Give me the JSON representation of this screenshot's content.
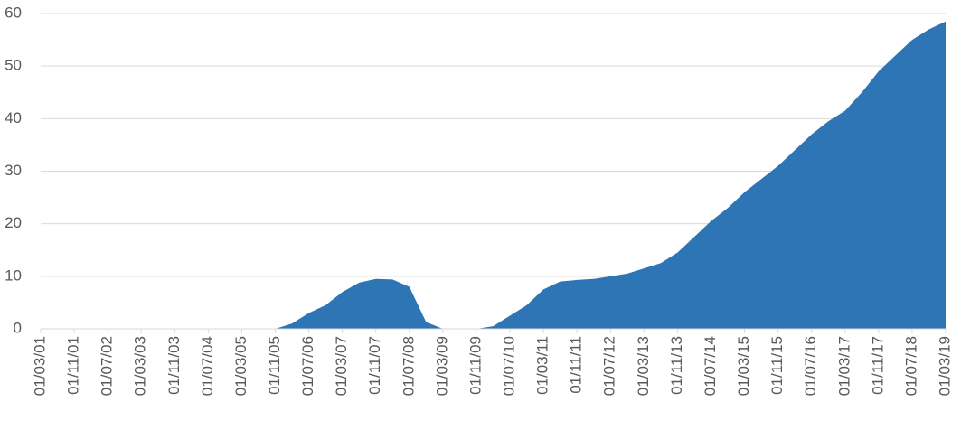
{
  "chart_data": {
    "type": "area",
    "color": "#2e75b6",
    "grid": true,
    "categories": [
      "01/03/01",
      null,
      "01/11/01",
      null,
      "01/07/02",
      null,
      "01/03/03",
      null,
      "01/11/03",
      null,
      "01/07/04",
      null,
      "01/03/05",
      null,
      "01/11/05",
      null,
      "01/07/06",
      null,
      "01/03/07",
      null,
      "01/11/07",
      null,
      "01/07/08",
      null,
      "01/03/09",
      null,
      "01/11/09",
      null,
      "01/07/10",
      null,
      "01/03/11",
      null,
      "01/11/11",
      null,
      "01/07/12",
      null,
      "01/03/13",
      null,
      "01/11/13",
      null,
      "01/07/14",
      null,
      "01/03/15",
      null,
      "01/11/15",
      null,
      "01/07/16",
      null,
      "01/03/17",
      null,
      "01/11/17",
      null,
      "01/07/18",
      null,
      "01/03/19"
    ],
    "values": [
      0,
      0,
      0,
      0,
      0,
      0,
      0,
      0,
      0,
      0,
      0,
      0,
      0,
      0,
      0,
      1,
      3,
      4.5,
      7,
      8.8,
      9.5,
      9.4,
      8,
      1.3,
      0,
      0,
      0,
      0.5,
      2.5,
      4.5,
      7.5,
      9,
      9.3,
      9.5,
      10,
      10.5,
      11.5,
      12.5,
      14.5,
      17.5,
      20.5,
      23,
      26,
      28.5,
      31,
      34,
      37,
      39.5,
      41.5,
      45,
      49,
      52,
      55,
      57,
      58.5
    ],
    "ylim": [
      0,
      60
    ],
    "yticks": [
      0,
      10,
      20,
      30,
      40,
      50,
      60
    ]
  }
}
